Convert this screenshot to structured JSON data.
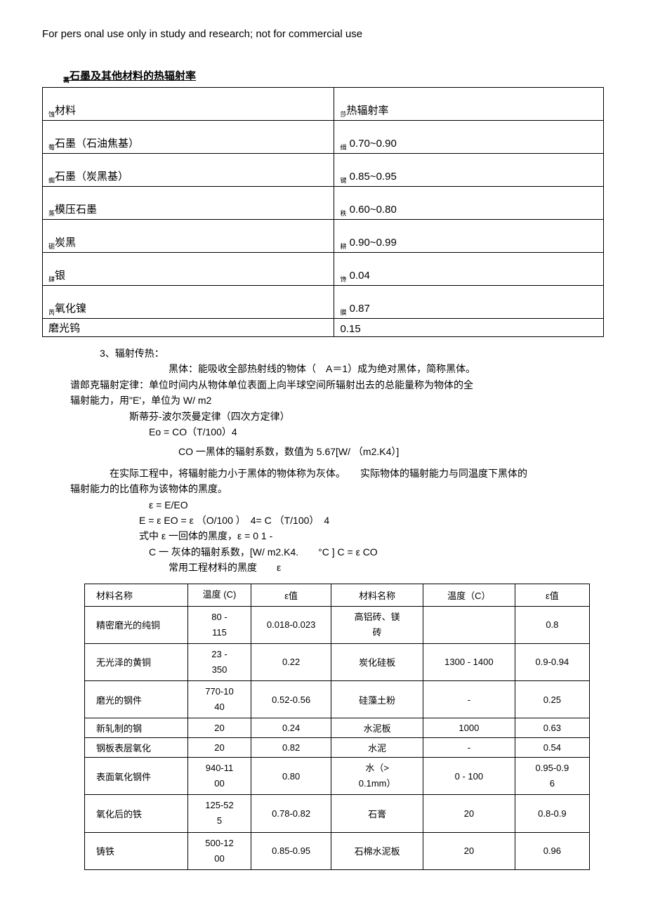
{
  "header": "For pers onal use only in study and research; not for commercial use",
  "table1_title_prefix": "蒿",
  "table1_title": "石墨及其他材料的热辐射率",
  "table1": {
    "header_col1_prefix": "蚀",
    "header_col1": "材料",
    "header_col2_prefix": "莎",
    "header_col2": "热辐射率",
    "rows": [
      {
        "p1": "莓",
        "m": "石墨（石油焦基）",
        "p2": "缉",
        "v": "0.70~0.90"
      },
      {
        "p1": "蜘",
        "m": "石墨（炭黑基）",
        "p2": "键",
        "v": "0.85~0.95"
      },
      {
        "p1": "蒸",
        "m": "模压石墨",
        "p2": "秩",
        "v": "0.60~0.80"
      },
      {
        "p1": "砺",
        "m": "炭黑",
        "p2": "耕",
        "v": "0.90~0.99"
      },
      {
        "p1": "肆",
        "m": "银",
        "p2": "馋",
        "v": "0.04"
      },
      {
        "p1": "芮",
        "m": "氧化镍",
        "p2": "膜",
        "v": "0.87"
      }
    ],
    "last_row": {
      "m": "磨光钨",
      "v": "0.15"
    }
  },
  "text": {
    "p1": "3、辐射传热：",
    "p2": "黑体：能吸收全部热射线的物体（　A＝1）成为绝对黑体，简称黑体。",
    "p3": "谱郎克辐射定律：单位时间内从物体单位表面上向半球空间所辐射出去的总能量称为物体的全",
    "p4": "辐射能力，用\"E'，单位为 W/ m2",
    "p5": "斯蒂芬-波尔茨曼定律（四次方定律）",
    "p6": "Eo = CO（T/100）4",
    "p7": "CO 一黑体的辐射系数，数值为 5.67[W/ （m2.K4）]",
    "p8": "在实际工程中，将辐射能力小于黑体的物体称为灰体。　　实际物体的辐射能力与同温度下黑体的",
    "p9": "辐射能力的比值称为该物体的黑度。",
    "p10": "ε = E/EO",
    "p11": "E = ε EO = ε （O/100 ）　4= C （T/100）　4",
    "p12": "式中 ε 一回体的黑度，ε = 0 1 -",
    "p13": "C 一 灰体的辐射系数，[W/ m2.K4.　　°C ] C = ε CO",
    "p14": "常用工程材料的黑度　　ε"
  },
  "table2": {
    "headers": [
      "材料名称",
      "温度 (C)",
      "ε值",
      "材料名称",
      "温度（C）",
      "ε值"
    ],
    "rows": [
      {
        "a": "精密磨光的纯铜",
        "b": "80 -\n115",
        "c": "0.018-0.023",
        "d": "高铝砖、镁\n砖",
        "e": "",
        "f": "0.8"
      },
      {
        "a": "无光泽的黄铜",
        "b": "23 -\n350",
        "c": "0.22",
        "d": "炭化硅板",
        "e": "1300 - 1400",
        "f": "0.9-0.94"
      },
      {
        "a": "磨光的钢件",
        "b": "770-10\n40",
        "c": "0.52-0.56",
        "d": "硅藻土粉",
        "e": "-",
        "f": "0.25"
      },
      {
        "a": "新轧制的钢",
        "b": "20",
        "c": "0.24",
        "d": "水泥板",
        "e": "1000",
        "f": "0.63"
      },
      {
        "a": "钢板表层氧化",
        "b": "20",
        "c": "0.82",
        "d": "水泥",
        "e": "-",
        "f": "0.54"
      },
      {
        "a": "表面氧化钢件",
        "b": "940-11\n00",
        "c": "0.80",
        "d": "水（>\n0.1mm）",
        "e": "0 - 100",
        "f": "0.95-0.9\n6"
      },
      {
        "a": "氧化后的铁",
        "b": "125-52\n5",
        "c": "0.78-0.82",
        "d": "石膏",
        "e": "20",
        "f": "0.8-0.9"
      },
      {
        "a": "铸铁",
        "b": "500-12\n00",
        "c": "0.85-0.95",
        "d": "石棉水泥板",
        "e": "20",
        "f": "0.96"
      }
    ]
  }
}
